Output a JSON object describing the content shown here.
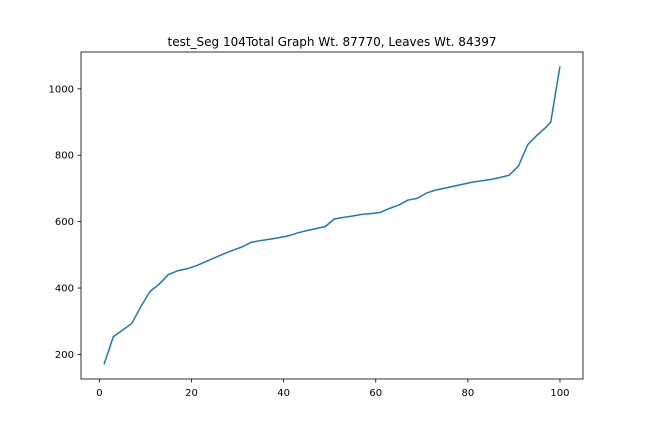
{
  "chart_data": {
    "type": "line",
    "title": "test_Seg 104Total Graph Wt. 87770, Leaves Wt. 84397",
    "xlabel": "",
    "ylabel": "",
    "xlim": [
      -4,
      105
    ],
    "ylim": [
      126,
      1111
    ],
    "grid": false,
    "x_ticks": [
      0,
      20,
      40,
      60,
      80,
      100
    ],
    "y_ticks": [
      200,
      400,
      600,
      800,
      1000
    ],
    "colors": {
      "line": "#1f77b4",
      "axes": "#000000",
      "background": "#ffffff"
    },
    "series": [
      {
        "x": [
          1,
          3,
          5,
          7,
          9,
          11,
          13,
          15,
          17,
          19,
          21,
          23,
          25,
          27,
          29,
          31,
          33,
          35,
          37,
          39,
          41,
          43,
          45,
          47,
          49,
          51,
          53,
          55,
          57,
          59,
          61,
          63,
          65,
          67,
          69,
          71,
          73,
          75,
          77,
          79,
          81,
          83,
          85,
          87,
          89,
          91,
          93,
          95,
          97,
          98,
          100
        ],
        "y": [
          170,
          253,
          273,
          293,
          344,
          390,
          412,
          441,
          452,
          458,
          467,
          479,
          491,
          503,
          514,
          524,
          538,
          543,
          547,
          552,
          557,
          566,
          573,
          579,
          585,
          608,
          613,
          617,
          622,
          624,
          628,
          640,
          650,
          665,
          670,
          686,
          695,
          701,
          707,
          713,
          719,
          723,
          727,
          733,
          740,
          768,
          832,
          860,
          885,
          900,
          1068
        ]
      }
    ]
  }
}
